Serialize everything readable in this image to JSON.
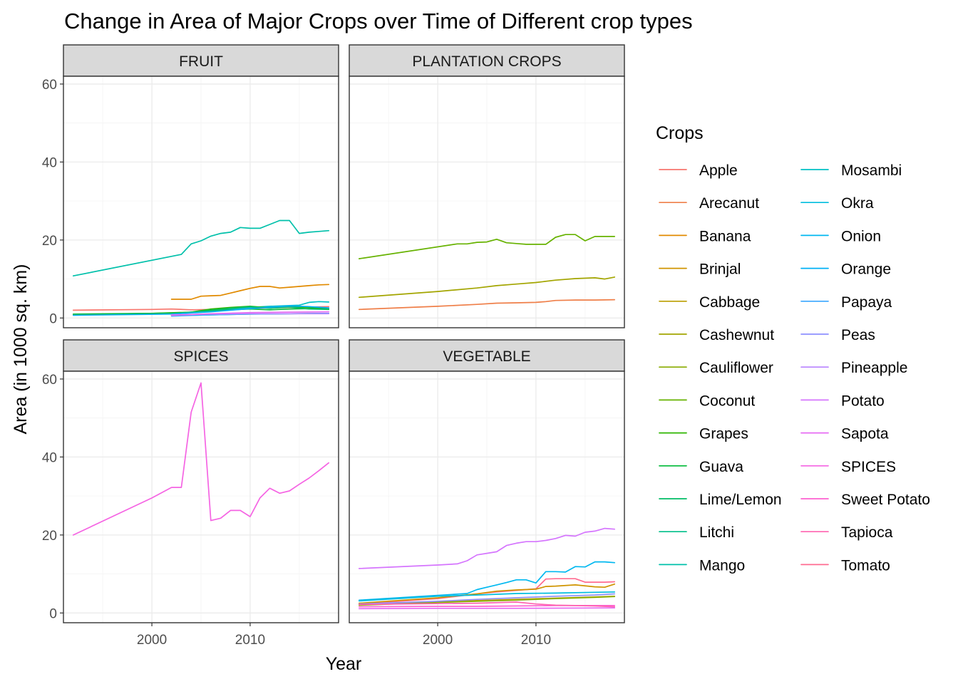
{
  "chart_data": {
    "type": "line",
    "title": "Change in Area of Major Crops over Time of Different crop types",
    "xlabel": "Year",
    "ylabel": "Area (in 1000 sq. km)",
    "xlim": [
      1991,
      2019
    ],
    "ylim": [
      -2.5,
      62
    ],
    "x_major_ticks": [
      2000,
      2010
    ],
    "x_minor_ticks": [
      1995,
      2005,
      2015
    ],
    "y_major_ticks": [
      0,
      20,
      40,
      60
    ],
    "y_minor_ticks": [
      10,
      30,
      50
    ],
    "grid": true,
    "legend": {
      "title": "Crops",
      "position": "right",
      "columns": 2,
      "entries": [
        {
          "name": "Apple",
          "color": "#F8766D"
        },
        {
          "name": "Arecanut",
          "color": "#EF7F49"
        },
        {
          "name": "Banana",
          "color": "#E18A00"
        },
        {
          "name": "Brinjal",
          "color": "#D09400"
        },
        {
          "name": "Cabbage",
          "color": "#BA9E00"
        },
        {
          "name": "Cashewnut",
          "color": "#A3A500"
        },
        {
          "name": "Cauliflower",
          "color": "#89AC00"
        },
        {
          "name": "Coconut",
          "color": "#66B200"
        },
        {
          "name": "Grapes",
          "color": "#2DB600"
        },
        {
          "name": "Guava",
          "color": "#00BA38"
        },
        {
          "name": "Lime/Lemon",
          "color": "#00BD66"
        },
        {
          "name": "Litchi",
          "color": "#00BF8A"
        },
        {
          "name": "Mango",
          "color": "#00C0AA"
        },
        {
          "name": "Mosambi",
          "color": "#00C0C5"
        },
        {
          "name": "Okra",
          "color": "#00BDDE"
        },
        {
          "name": "Onion",
          "color": "#00B8F0"
        },
        {
          "name": "Orange",
          "color": "#00B0F6"
        },
        {
          "name": "Papaya",
          "color": "#3AA6FF"
        },
        {
          "name": "Peas",
          "color": "#8F91FF"
        },
        {
          "name": "Pineapple",
          "color": "#B983FF"
        },
        {
          "name": "Potato",
          "color": "#D575FE"
        },
        {
          "name": "Sapota",
          "color": "#E76BF3"
        },
        {
          "name": "SPICES",
          "color": "#F564E3"
        },
        {
          "name": "Sweet Potato",
          "color": "#FD61D1"
        },
        {
          "name": "Tapioca",
          "color": "#FF64B0"
        },
        {
          "name": "Tomato",
          "color": "#FF6C91"
        }
      ]
    },
    "panels": [
      {
        "strip": "FRUIT",
        "series": [
          {
            "name": "Mango",
            "x": [
              1992,
              2003,
              2004,
              2005,
              2006,
              2007,
              2008,
              2009,
              2010,
              2011,
              2012,
              2013,
              2014,
              2015,
              2016,
              2017,
              2018
            ],
            "y": [
              10.8,
              16.3,
              19.0,
              19.8,
              21.0,
              21.7,
              22.0,
              23.2,
              23.0,
              23.0,
              24.0,
              25.0,
              25.0,
              21.7,
              22.0,
              22.2,
              22.4
            ]
          },
          {
            "name": "Banana",
            "x": [
              2002,
              2003,
              2004,
              2005,
              2006,
              2007,
              2008,
              2009,
              2010,
              2011,
              2012,
              2013,
              2014,
              2015,
              2016,
              2017,
              2018
            ],
            "y": [
              4.8,
              4.8,
              4.8,
              5.6,
              5.7,
              5.8,
              6.4,
              7.0,
              7.6,
              8.1,
              8.1,
              7.7,
              7.9,
              8.1,
              8.3,
              8.5,
              8.6
            ]
          },
          {
            "name": "Apple",
            "x": [
              1992,
              2000,
              2002,
              2004,
              2006,
              2008,
              2010,
              2012,
              2014,
              2016,
              2018
            ],
            "y": [
              2.0,
              2.2,
              2.3,
              2.1,
              2.2,
              2.4,
              2.5,
              2.6,
              2.7,
              2.8,
              2.9
            ]
          },
          {
            "name": "Mosambi",
            "x": [
              2002,
              2004,
              2006,
              2008,
              2010,
              2012,
              2014,
              2015,
              2016,
              2017,
              2018
            ],
            "y": [
              1.2,
              1.5,
              1.9,
              2.3,
              2.7,
              3.0,
              3.2,
              3.3,
              4.0,
              4.2,
              4.1
            ]
          },
          {
            "name": "Grapes",
            "x": [
              1992,
              2000,
              2004,
              2006,
              2008,
              2010,
              2012,
              2014,
              2016,
              2018
            ],
            "y": [
              0.9,
              1.2,
              1.5,
              2.3,
              2.7,
              3.0,
              2.6,
              2.8,
              2.7,
              2.5
            ]
          },
          {
            "name": "Guava",
            "x": [
              1992,
              2000,
              2004,
              2006,
              2008,
              2010,
              2012,
              2014,
              2016,
              2018
            ],
            "y": [
              1.0,
              1.2,
              1.4,
              1.8,
              2.1,
              2.3,
              2.1,
              2.3,
              2.4,
              2.3
            ]
          },
          {
            "name": "Lime/Lemon",
            "x": [
              2002,
              2004,
              2006,
              2008,
              2010,
              2012,
              2014,
              2016,
              2018
            ],
            "y": [
              1.1,
              1.5,
              2.0,
              2.5,
              2.9,
              2.5,
              2.8,
              2.3,
              2.2
            ]
          },
          {
            "name": "Litchi",
            "x": [
              2002,
              2006,
              2010,
              2014,
              2018
            ],
            "y": [
              0.6,
              0.8,
              1.0,
              1.1,
              1.2
            ]
          },
          {
            "name": "Orange",
            "x": [
              1992,
              2002,
              2006,
              2010,
              2014,
              2016,
              2018
            ],
            "y": [
              0.7,
              1.0,
              1.6,
              2.4,
              3.1,
              2.9,
              2.6
            ]
          },
          {
            "name": "Papaya",
            "x": [
              2002,
              2006,
              2010,
              2014,
              2018
            ],
            "y": [
              0.5,
              0.8,
              1.0,
              1.1,
              1.2
            ]
          },
          {
            "name": "Pineapple",
            "x": [
              2002,
              2006,
              2010,
              2014,
              2018
            ],
            "y": [
              0.8,
              1.0,
              1.1,
              1.1,
              1.1
            ]
          },
          {
            "name": "Sapota",
            "x": [
              2002,
              2006,
              2010,
              2014,
              2018
            ],
            "y": [
              0.7,
              1.1,
              1.4,
              1.5,
              1.6
            ]
          }
        ]
      },
      {
        "strip": "PLANTATION CROPS",
        "series": [
          {
            "name": "Coconut",
            "x": [
              1992,
              2002,
              2003,
              2004,
              2005,
              2006,
              2007,
              2008,
              2009,
              2010,
              2011,
              2012,
              2013,
              2014,
              2015,
              2016,
              2017,
              2018
            ],
            "y": [
              15.2,
              19.0,
              19.0,
              19.4,
              19.5,
              20.2,
              19.3,
              19.1,
              18.9,
              18.9,
              18.9,
              20.7,
              21.4,
              21.4,
              19.8,
              20.9,
              20.9,
              20.9
            ]
          },
          {
            "name": "Cashewnut",
            "x": [
              1992,
              2000,
              2004,
              2006,
              2008,
              2010,
              2012,
              2014,
              2016,
              2017,
              2018
            ],
            "y": [
              5.3,
              6.8,
              7.7,
              8.3,
              8.7,
              9.1,
              9.7,
              10.1,
              10.3,
              10.0,
              10.5
            ]
          },
          {
            "name": "Arecanut",
            "x": [
              1992,
              2000,
              2004,
              2006,
              2008,
              2010,
              2011,
              2012,
              2014,
              2016,
              2018
            ],
            "y": [
              2.2,
              3.0,
              3.5,
              3.8,
              3.9,
              4.0,
              4.2,
              4.5,
              4.6,
              4.6,
              4.7
            ]
          }
        ]
      },
      {
        "strip": "SPICES",
        "series": [
          {
            "name": "SPICES",
            "x": [
              1992,
              2000,
              2002,
              2003,
              2004,
              2005,
              2006,
              2007,
              2008,
              2009,
              2010,
              2011,
              2012,
              2013,
              2014,
              2015,
              2016,
              2017,
              2018
            ],
            "y": [
              20.0,
              29.5,
              32.2,
              32.2,
              51.5,
              59.0,
              23.7,
              24.3,
              26.3,
              26.3,
              24.7,
              29.5,
              32.0,
              30.7,
              31.3,
              33.0,
              34.6,
              36.5,
              38.5
            ]
          }
        ]
      },
      {
        "strip": "VEGETABLE",
        "series": [
          {
            "name": "Potato",
            "x": [
              1992,
              2000,
              2002,
              2003,
              2004,
              2005,
              2006,
              2007,
              2008,
              2009,
              2010,
              2011,
              2012,
              2013,
              2014,
              2015,
              2016,
              2017,
              2018
            ],
            "y": [
              11.4,
              12.3,
              12.6,
              13.4,
              14.9,
              15.3,
              15.7,
              17.3,
              17.9,
              18.3,
              18.3,
              18.6,
              19.1,
              19.9,
              19.7,
              20.7,
              21.0,
              21.7,
              21.5
            ]
          },
          {
            "name": "Onion",
            "x": [
              1992,
              2003,
              2004,
              2005,
              2006,
              2007,
              2008,
              2009,
              2010,
              2011,
              2012,
              2013,
              2014,
              2015,
              2016,
              2017,
              2018
            ],
            "y": [
              3.3,
              5.0,
              6.0,
              6.6,
              7.2,
              7.8,
              8.5,
              8.5,
              7.7,
              10.6,
              10.6,
              10.5,
              11.9,
              11.8,
              13.1,
              13.1,
              12.9
            ]
          },
          {
            "name": "Tomato",
            "x": [
              1992,
              2000,
              2004,
              2006,
              2008,
              2010,
              2011,
              2012,
              2013,
              2014,
              2015,
              2016,
              2017,
              2018
            ],
            "y": [
              2.3,
              3.7,
              4.9,
              5.4,
              5.8,
              6.2,
              8.7,
              8.8,
              8.8,
              8.8,
              7.9,
              7.9,
              7.9,
              8.0
            ]
          },
          {
            "name": "Brinjal",
            "x": [
              1992,
              2000,
              2004,
              2006,
              2008,
              2010,
              2011,
              2012,
              2014,
              2016,
              2017,
              2018
            ],
            "y": [
              2.5,
              3.9,
              4.9,
              5.6,
              5.9,
              6.1,
              6.8,
              6.9,
              7.2,
              6.7,
              6.6,
              7.4
            ]
          },
          {
            "name": "Okra",
            "x": [
              1992,
              2000,
              2004,
              2008,
              2012,
              2016,
              2018
            ],
            "y": [
              3.1,
              4.3,
              4.6,
              5.0,
              5.1,
              5.3,
              5.4
            ]
          },
          {
            "name": "Cabbage",
            "x": [
              1992,
              2000,
              2004,
              2008,
              2012,
              2016,
              2018
            ],
            "y": [
              2.1,
              2.9,
              3.2,
              3.5,
              3.8,
              4.1,
              4.3
            ]
          },
          {
            "name": "Cauliflower",
            "x": [
              1992,
              2000,
              2004,
              2008,
              2012,
              2016,
              2018
            ],
            "y": [
              2.0,
              2.7,
              3.0,
              3.3,
              3.7,
              4.0,
              4.2
            ]
          },
          {
            "name": "Peas",
            "x": [
              1992,
              2000,
              2004,
              2008,
              2012,
              2016,
              2018
            ],
            "y": [
              2.3,
              3.0,
              3.5,
              3.9,
              4.3,
              4.6,
              4.9
            ]
          },
          {
            "name": "Sweet Potato",
            "x": [
              1992,
              2000,
              2004,
              2008,
              2012,
              2016,
              2018
            ],
            "y": [
              1.6,
              1.7,
              1.7,
              1.8,
              1.9,
              1.9,
              1.9
            ]
          },
          {
            "name": "Tapioca",
            "x": [
              1992,
              2000,
              2004,
              2008,
              2010,
              2012,
              2014,
              2016,
              2018
            ],
            "y": [
              2.2,
              2.4,
              2.5,
              2.8,
              2.3,
              2.0,
              1.9,
              1.8,
              1.6
            ]
          },
          {
            "name": "Sapota",
            "x": [
              1992,
              2000,
              2008,
              2018
            ],
            "y": [
              1.1,
              1.2,
              1.2,
              1.3
            ]
          }
        ]
      }
    ]
  }
}
